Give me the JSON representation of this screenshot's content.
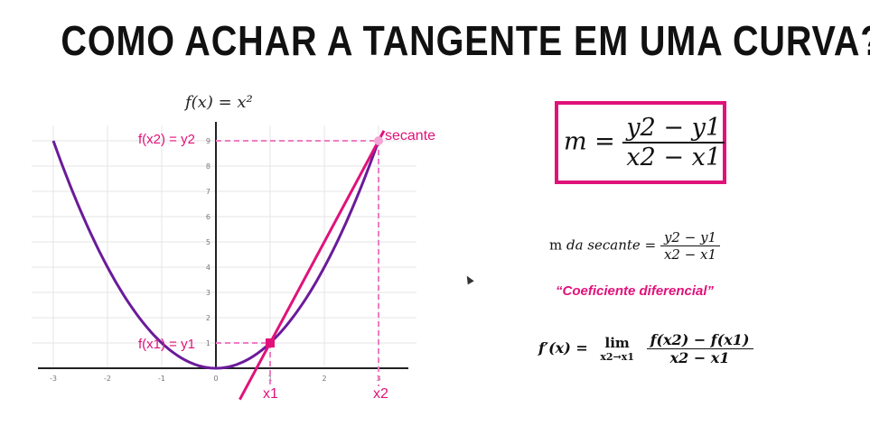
{
  "title": "COMO ACHAR A TANGENTE EM UMA CURVA?",
  "graph": {
    "function_label": "f(x) = x²",
    "x_ticks": [
      "-3",
      "-2",
      "-1",
      "0",
      "1",
      "2",
      "3"
    ],
    "y_ticks": [
      "1",
      "2",
      "3",
      "4",
      "5",
      "6",
      "7",
      "8",
      "9"
    ],
    "labels": {
      "secant": "secante",
      "fx2": "f(x2) = y2",
      "fx1": "f(x1) = y1",
      "x1": "x1",
      "x2": "x2"
    },
    "colors": {
      "curve": "#6a1b9a",
      "accent": "#e0127a",
      "grid": "#e6e6e6"
    },
    "points": [
      {
        "x": 1,
        "y": 1
      },
      {
        "x": 3,
        "y": 9
      }
    ]
  },
  "slope_formula": {
    "lhs": "m =",
    "numerator": "y2 − y1",
    "denominator": "x2 − x1"
  },
  "secant_formula": {
    "label": "m",
    "label_italic": "da secante",
    "equals": "=",
    "numerator": "y2 − y1",
    "denominator": "x2 − x1"
  },
  "coefficient_text": "“Coeficiente diferencial”",
  "derivative": {
    "lhs": "f′(x) =",
    "lim_word": "lim",
    "lim_sub": "x2→x1",
    "numerator": "f(x2) − f(x1)",
    "denominator": "x2 − x1"
  }
}
